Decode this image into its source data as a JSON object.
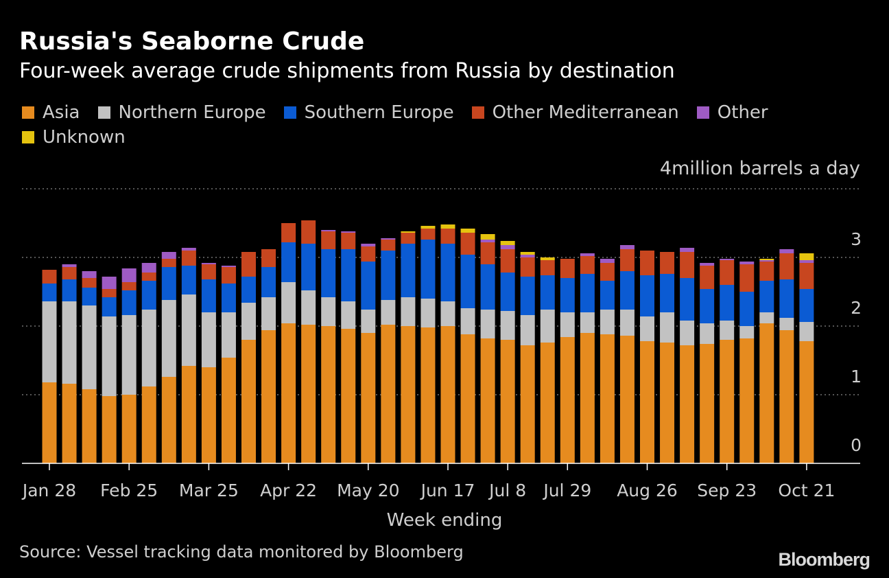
{
  "title": "Russia's Seaborne Crude",
  "subtitle": "Four-week average crude shipments from Russia by destination",
  "legend": [
    {
      "label": "Asia",
      "color": "#E68B1F"
    },
    {
      "label": "Northern Europe",
      "color": "#C2C2C2"
    },
    {
      "label": "Southern Europe",
      "color": "#0B5BD3"
    },
    {
      "label": "Other Mediterranean",
      "color": "#C8461F"
    },
    {
      "label": "Other",
      "color": "#9F5BC4"
    },
    {
      "label": "Unknown",
      "color": "#E5C30F"
    }
  ],
  "unit_label": "4million barrels a day",
  "source": "Source: Vessel tracking data monitored by Bloomberg",
  "logo": "Bloomberg",
  "chart_data": {
    "type": "bar",
    "stacked": true,
    "xlabel": "Week ending",
    "ylabel": "",
    "ylim": [
      0,
      4
    ],
    "yticks": [
      0,
      1,
      2,
      3
    ],
    "ytick_labels": [
      "0",
      "1",
      "2",
      "3"
    ],
    "grid": true,
    "x_tick_labels": [
      {
        "label": "Jan 28",
        "index": 0
      },
      {
        "label": "Feb 25",
        "index": 4
      },
      {
        "label": "Mar 25",
        "index": 8
      },
      {
        "label": "Apr 22",
        "index": 12
      },
      {
        "label": "May 20",
        "index": 16
      },
      {
        "label": "Jun 17",
        "index": 20
      },
      {
        "label": "Jul 8",
        "index": 23
      },
      {
        "label": "Jul 29",
        "index": 26
      },
      {
        "label": "Aug 26",
        "index": 30
      },
      {
        "label": "Sep 23",
        "index": 34
      },
      {
        "label": "Oct 21",
        "index": 38
      }
    ],
    "series": [
      {
        "name": "Asia",
        "color": "#E68B1F",
        "values": [
          1.18,
          1.16,
          1.08,
          0.98,
          1.0,
          1.12,
          1.26,
          1.42,
          1.4,
          1.54,
          1.8,
          1.94,
          2.04,
          2.02,
          2.0,
          1.96,
          1.9,
          2.02,
          2.0,
          1.98,
          2.0,
          1.88,
          1.82,
          1.8,
          1.72,
          1.76,
          1.84,
          1.9,
          1.88,
          1.86,
          1.78,
          1.76,
          1.72,
          1.74,
          1.8,
          1.82,
          2.04,
          1.94,
          1.78
        ]
      },
      {
        "name": "Northern Europe",
        "color": "#C2C2C2",
        "values": [
          1.18,
          1.2,
          1.22,
          1.16,
          1.16,
          1.12,
          1.12,
          1.04,
          0.8,
          0.66,
          0.54,
          0.48,
          0.6,
          0.5,
          0.42,
          0.4,
          0.34,
          0.36,
          0.42,
          0.42,
          0.36,
          0.38,
          0.42,
          0.42,
          0.44,
          0.48,
          0.36,
          0.3,
          0.36,
          0.38,
          0.36,
          0.44,
          0.36,
          0.3,
          0.28,
          0.18,
          0.16,
          0.18,
          0.28
        ]
      },
      {
        "name": "Southern Europe",
        "color": "#0B5BD3",
        "values": [
          0.26,
          0.32,
          0.26,
          0.28,
          0.36,
          0.42,
          0.48,
          0.42,
          0.48,
          0.42,
          0.38,
          0.44,
          0.58,
          0.68,
          0.7,
          0.76,
          0.7,
          0.72,
          0.78,
          0.86,
          0.84,
          0.78,
          0.66,
          0.56,
          0.56,
          0.5,
          0.5,
          0.56,
          0.42,
          0.56,
          0.6,
          0.56,
          0.62,
          0.5,
          0.52,
          0.5,
          0.46,
          0.56,
          0.48
        ]
      },
      {
        "name": "Other Mediterranean",
        "color": "#C8461F",
        "values": [
          0.2,
          0.18,
          0.14,
          0.12,
          0.12,
          0.12,
          0.12,
          0.22,
          0.22,
          0.24,
          0.36,
          0.26,
          0.28,
          0.34,
          0.26,
          0.24,
          0.22,
          0.16,
          0.16,
          0.16,
          0.22,
          0.32,
          0.32,
          0.34,
          0.28,
          0.22,
          0.28,
          0.26,
          0.26,
          0.32,
          0.36,
          0.32,
          0.38,
          0.34,
          0.36,
          0.4,
          0.28,
          0.38,
          0.38
        ]
      },
      {
        "name": "Other",
        "color": "#9F5BC4",
        "values": [
          0,
          0.04,
          0.1,
          0.18,
          0.2,
          0.14,
          0.1,
          0.04,
          0.02,
          0.02,
          0,
          0,
          0,
          0,
          0.02,
          0.02,
          0.04,
          0.02,
          0,
          0,
          0,
          0,
          0.04,
          0.06,
          0.04,
          0,
          0,
          0.04,
          0.06,
          0.06,
          0,
          0,
          0.06,
          0.04,
          0.02,
          0.04,
          0.02,
          0.06,
          0.04
        ]
      },
      {
        "name": "Unknown",
        "color": "#E5C30F",
        "values": [
          0,
          0,
          0,
          0,
          0,
          0,
          0,
          0,
          0,
          0,
          0,
          0,
          0,
          0,
          0,
          0,
          0,
          0,
          0.02,
          0.04,
          0.06,
          0.06,
          0.08,
          0.06,
          0.04,
          0.04,
          0,
          0,
          0,
          0,
          0,
          0,
          0,
          0,
          0,
          0,
          0.02,
          0,
          0.1
        ]
      }
    ]
  }
}
